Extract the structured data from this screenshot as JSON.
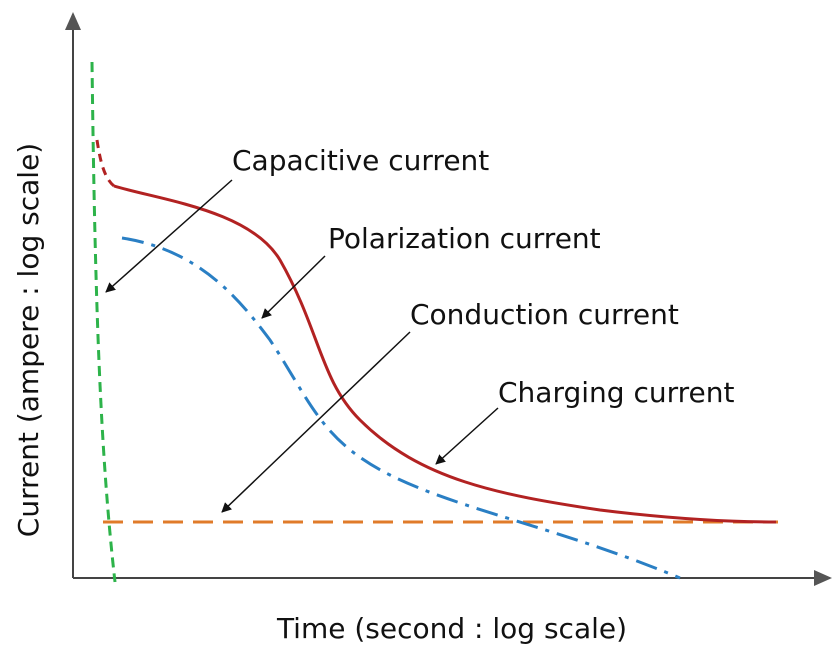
{
  "axes": {
    "y_label": "Current (ampere : log scale)",
    "x_label": "Time (second : log scale)"
  },
  "curves": [
    {
      "label": "Capacitive current"
    },
    {
      "label": "Polarization current"
    },
    {
      "label": "Conduction current"
    },
    {
      "label": "Charging current"
    }
  ]
}
